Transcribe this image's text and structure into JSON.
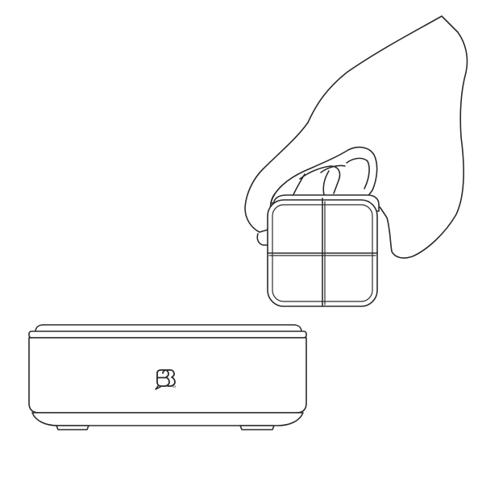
{
  "illustration": {
    "background_color": "#ffffff",
    "line_color": "#2a2a2a",
    "hub": {
      "logo_icon": "hub-logo-icon",
      "trademark_text": "TM"
    },
    "remote": {
      "button_count": 4
    }
  }
}
